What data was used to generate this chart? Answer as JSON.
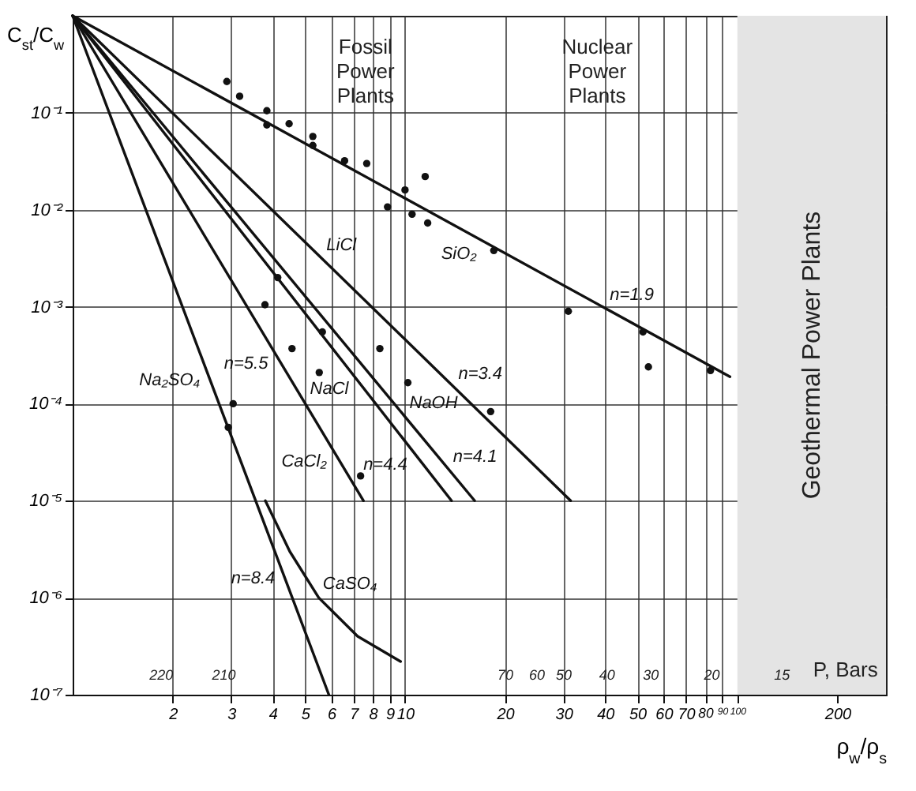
{
  "chart_data": {
    "type": "line",
    "xlabel": "ρ$_{w}$/ρ$_{s}$",
    "ylabel": "C$_{st}$/C$_{w}$",
    "log": "xy",
    "grid": true,
    "line_style": "solid",
    "marker": "none",
    "xlim": [
      1,
      280
    ],
    "ylim": [
      1e-07,
      1
    ],
    "xticks": [
      2,
      3,
      4,
      5,
      6,
      7,
      8,
      9,
      10,
      20,
      30,
      40,
      50,
      60,
      70,
      80,
      90,
      100,
      200
    ],
    "yticks": [
      {
        "value": 1e-07,
        "label": "10⁻⁷"
      },
      {
        "value": 1e-06,
        "label": "10⁻⁶"
      },
      {
        "value": 1e-05,
        "label": "10⁻⁵"
      },
      {
        "value": 0.0001,
        "label": "10⁻⁴"
      },
      {
        "value": 0.001,
        "label": "10⁻³"
      },
      {
        "value": 0.01,
        "label": "10⁻²"
      },
      {
        "value": 0.1,
        "label": "10⁻¹"
      }
    ],
    "bands": [
      {
        "axis": "x",
        "from": 100,
        "to": 280,
        "label": "Geothermal Power Plants",
        "color": "#e4e4e4"
      }
    ],
    "annotations": [
      "Fossil Power Plants",
      "Nuclear Power Plants",
      "220",
      "210",
      "70",
      "60",
      "50",
      "40",
      "30",
      "20",
      "15",
      "P, Bars",
      {
        "text": "n=1.9",
        "x": 40,
        "y": 0.00097
      },
      {
        "text": "n=3.4",
        "x": 14,
        "y": 0.00015
      },
      {
        "text": "n=4.1",
        "x": 13.5,
        "y": 2.1e-05
      },
      {
        "text": "n=4.4",
        "x": 10.5,
        "y": 3.3e-05
      },
      {
        "text": "n=5.5",
        "x": 4,
        "y": 0.00036
      },
      {
        "text": "n=8.4",
        "x": 4.2,
        "y": 2.2e-06
      }
    ],
    "series": [
      {
        "name": "SiO₂",
        "color": "#111111",
        "x": [
          1,
          95
        ],
        "values": [
          1,
          0.00019
        ]
      },
      {
        "name": "LiCl",
        "color": "#111111",
        "x": [
          1,
          31.5
        ],
        "values": [
          1,
          1e-05
        ]
      },
      {
        "name": "NaOH",
        "color": "#111111",
        "x": [
          1,
          16.2
        ],
        "values": [
          1,
          1e-05
        ]
      },
      {
        "name": "NaCl",
        "color": "#111111",
        "x": [
          1,
          13.8
        ],
        "values": [
          1,
          1e-05
        ]
      },
      {
        "name": "CaCl₂",
        "color": "#111111",
        "x": [
          1,
          7.5
        ],
        "values": [
          1,
          1e-05
        ]
      },
      {
        "name": "Na₂SO₄",
        "color": "#111111",
        "x": [
          1,
          5.9
        ],
        "values": [
          1,
          1e-07
        ]
      },
      {
        "name": "CaSO₄",
        "color": "#111111",
        "x": [
          3.8,
          4.5,
          5.5,
          7.2,
          9.7
        ],
        "values": [
          1e-05,
          3e-06,
          1e-06,
          4e-07,
          2.2e-07
        ]
      },
      {
        "type": "scatter",
        "marker": "circle",
        "color": "#111111",
        "x": [
          2.91,
          3.18,
          3.84,
          3.84,
          4.48,
          5.28,
          5.28,
          6.58,
          7.67,
          11.5,
          10,
          8.86,
          10.5,
          11.7,
          18.5,
          31,
          52,
          54,
          83,
          3.79,
          4.14,
          5.64,
          4.57,
          5.52,
          8.4,
          10.2,
          18.1,
          7.35,
          3.04,
          2.94
        ],
        "values": [
          0.21,
          0.148,
          0.105,
          0.075,
          0.077,
          0.057,
          0.046,
          0.032,
          0.03,
          0.022,
          0.016,
          0.0107,
          0.009,
          0.0073,
          0.0038,
          0.0009,
          0.00055,
          0.00024,
          0.00022,
          0.00105,
          0.002,
          0.00055,
          0.00037,
          0.00021,
          0.00037,
          0.000165,
          8.3e-05,
          1.8e-05,
          0.0001,
          5.7e-05
        ]
      }
    ]
  }
}
